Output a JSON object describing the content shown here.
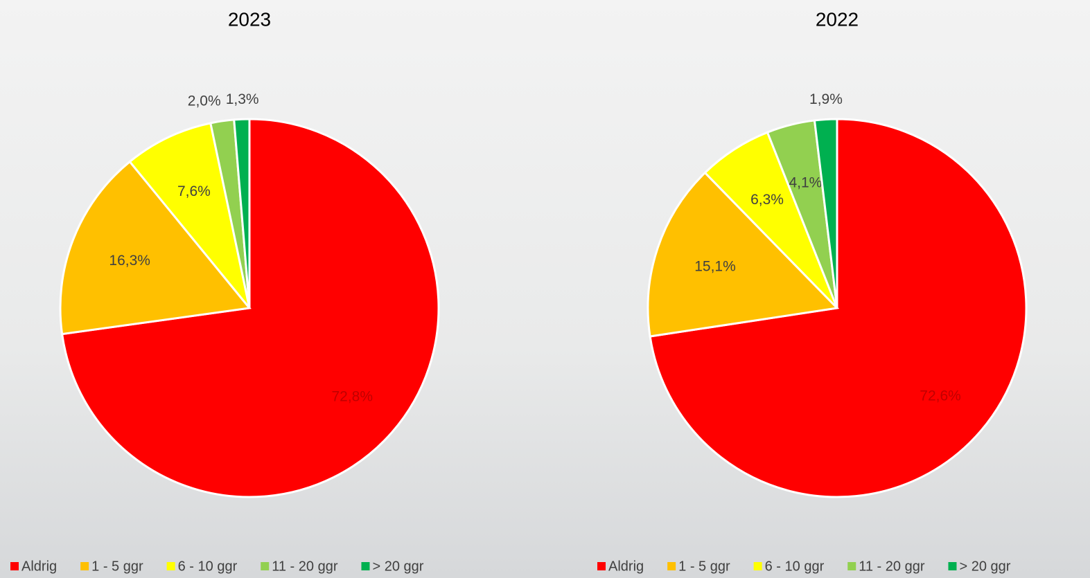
{
  "chart_data": [
    {
      "type": "pie",
      "title": "2023",
      "categories": [
        "Aldrig",
        "1 - 5 ggr",
        "6 - 10 ggr",
        "11 - 20 ggr",
        "> 20 ggr"
      ],
      "values": [
        72.8,
        16.3,
        7.6,
        2.0,
        1.3
      ],
      "value_labels": [
        "72,8%",
        "16,3%",
        "7,6%",
        "2,0%",
        "1,3%"
      ],
      "colors": [
        "#ff0000",
        "#ffc000",
        "#ffff00",
        "#92d050",
        "#00b050"
      ],
      "legend": "bottom"
    },
    {
      "type": "pie",
      "title": "2022",
      "categories": [
        "Aldrig",
        "1 - 5 ggr",
        "6 - 10 ggr",
        "11 - 20 ggr",
        "> 20 ggr"
      ],
      "values": [
        72.6,
        15.1,
        6.3,
        4.1,
        1.9
      ],
      "value_labels": [
        "72,6%",
        "15,1%",
        "6,3%",
        "4,1%",
        "1,9%"
      ],
      "colors": [
        "#ff0000",
        "#ffc000",
        "#ffff00",
        "#92d050",
        "#00b050"
      ],
      "legend": "bottom"
    }
  ]
}
